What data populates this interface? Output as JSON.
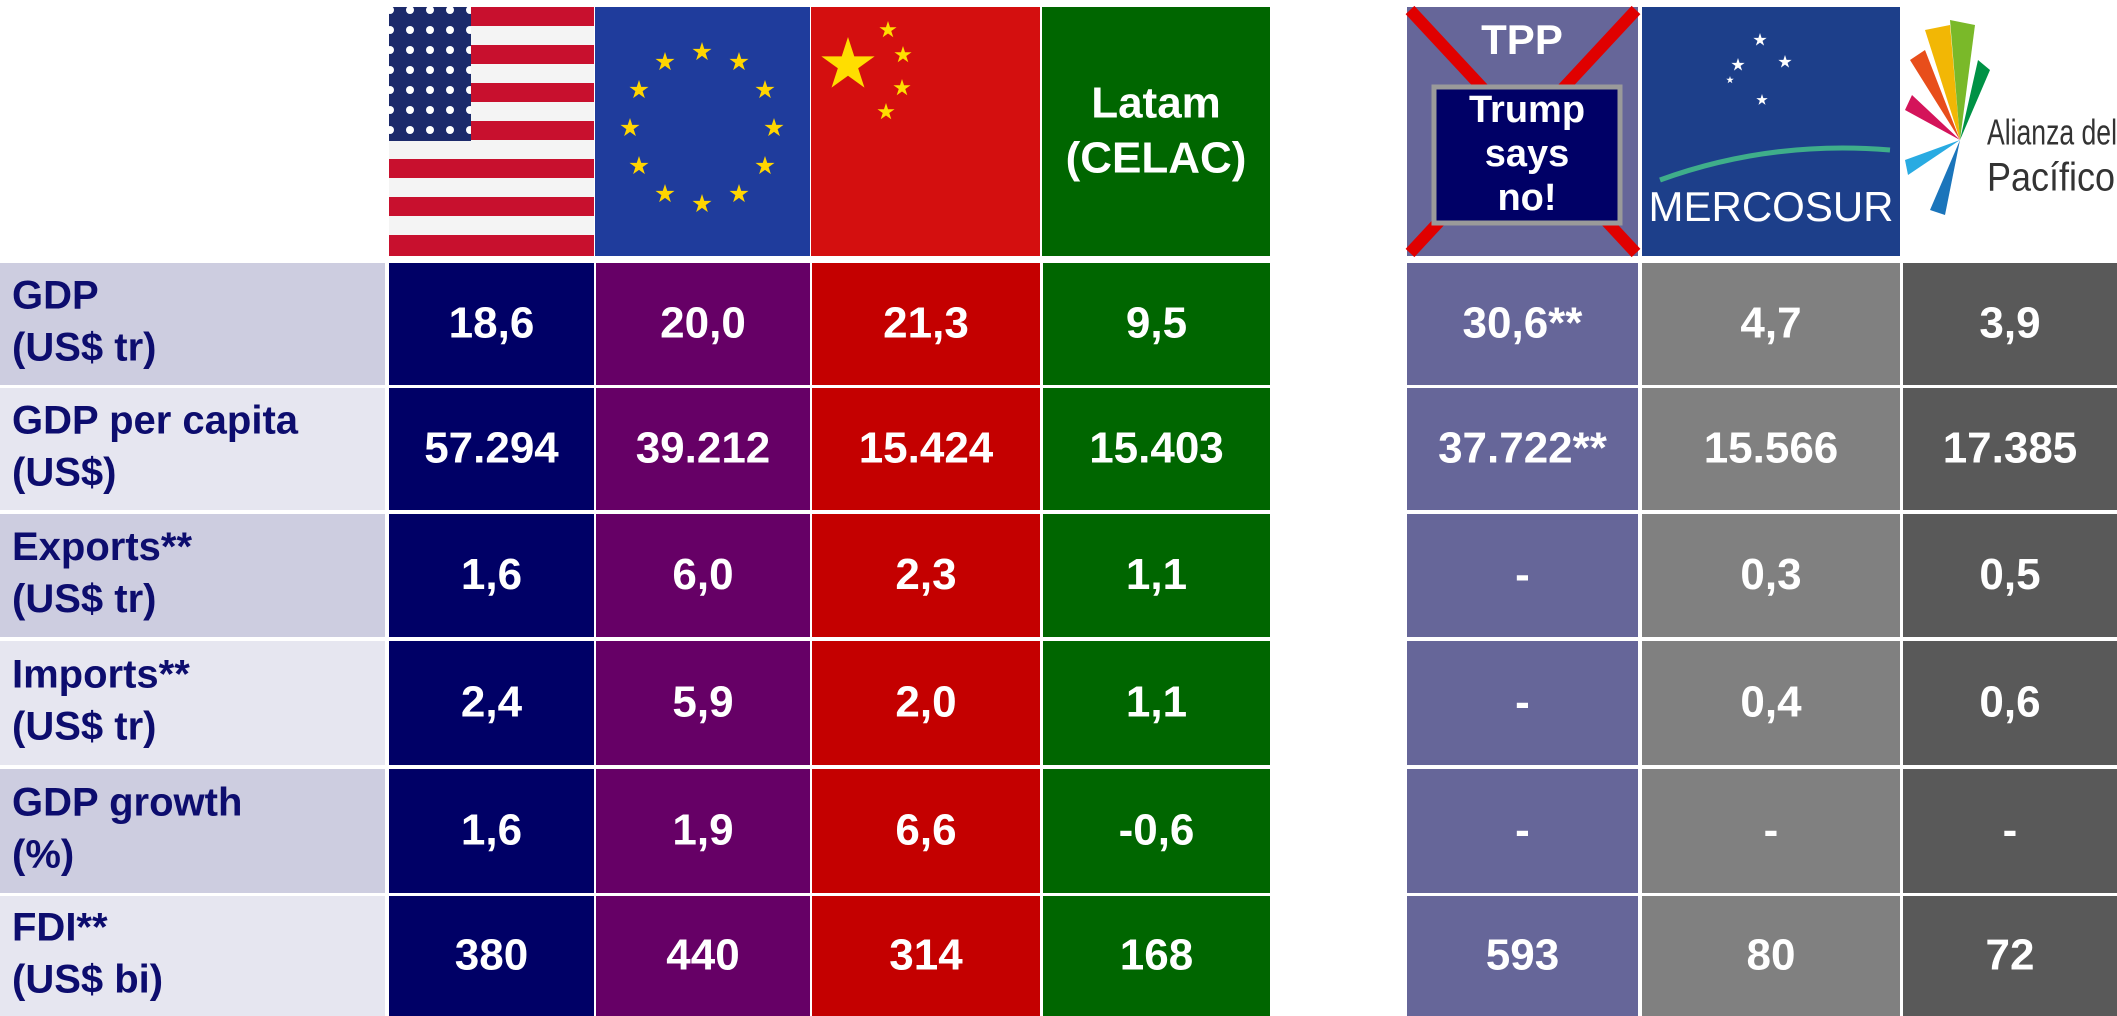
{
  "headers": {
    "latam": [
      "Latam",
      "(CELAC)"
    ],
    "tpp": "TPP",
    "tpp_note": [
      "Trump",
      "says",
      "no!"
    ],
    "mercosur": "MERCOSUR",
    "alianza": [
      "Alianza del",
      "Pacífico"
    ]
  },
  "rows": [
    {
      "label": [
        "GDP",
        "(US$ tr)"
      ],
      "cells": [
        "18,6",
        "20,0",
        "21,3",
        "9,5",
        "30,6**",
        "4,7",
        "3,9"
      ]
    },
    {
      "label": [
        "GDP per capita",
        "(US$)"
      ],
      "cells": [
        "57.294",
        "39.212",
        "15.424",
        "15.403",
        "37.722**",
        "15.566",
        "17.385"
      ]
    },
    {
      "label": [
        "Exports**",
        "(US$ tr)"
      ],
      "cells": [
        "1,6",
        "6,0",
        "2,3",
        "1,1",
        "-",
        "0,3",
        "0,5"
      ]
    },
    {
      "label": [
        "Imports**",
        "(US$ tr)"
      ],
      "cells": [
        "2,4",
        "5,9",
        "2,0",
        "1,1",
        "-",
        "0,4",
        "0,6"
      ]
    },
    {
      "label": [
        "GDP growth",
        "(%)"
      ],
      "cells": [
        "1,6",
        "1,9",
        "6,6",
        "-0,6",
        "-",
        "-",
        "-"
      ]
    },
    {
      "label": [
        "FDI**",
        "(US$ bi)"
      ],
      "cells": [
        "380",
        "440",
        "314",
        "168",
        "593",
        "80",
        "72"
      ]
    }
  ]
}
